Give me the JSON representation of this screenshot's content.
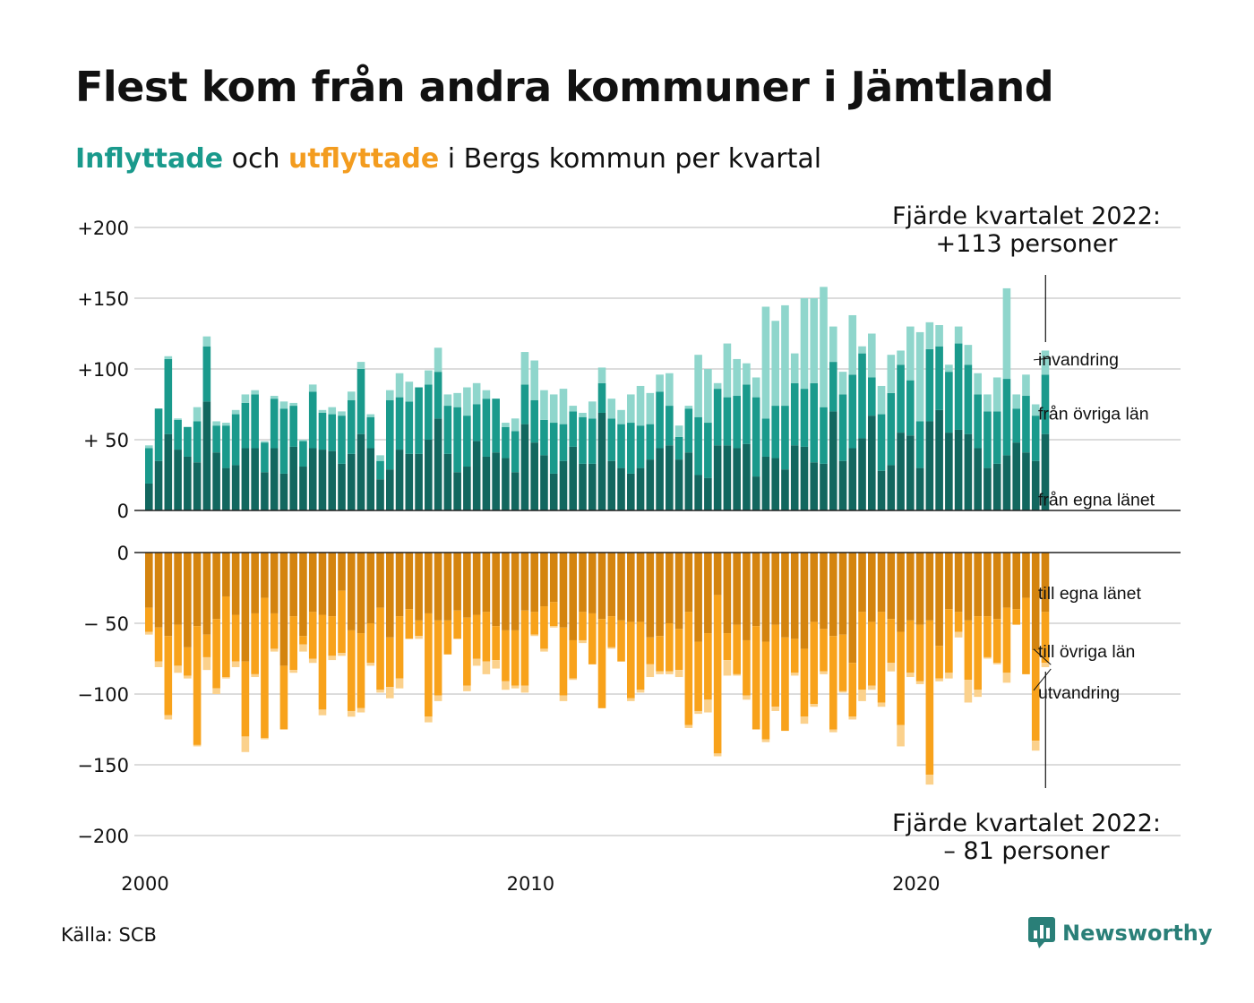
{
  "title": "Flest kom från andra kommuner i Jämtland",
  "subtitle": {
    "in_word": "Inflyttade",
    "and_word": " och ",
    "out_word": "utflyttade",
    "rest": " i Bergs kommun per kvartal"
  },
  "source": "Källa: SCB",
  "logo": {
    "name": "Newsworthy",
    "icon": "newsworthy-bar-chart-icon"
  },
  "colors": {
    "in_own": "#12675f",
    "in_other": "#1a9a8c",
    "in_abroad": "#8fd6cc",
    "out_own": "#d4840f",
    "out_other": "#f8a21b",
    "out_abroad": "#fbd18c"
  },
  "chart_data": {
    "type": "bar",
    "stacked": true,
    "x_unit": "quarter",
    "x_start_year": 2000,
    "x_ticks": [
      "2000",
      "2010",
      "2020"
    ],
    "top_panel": {
      "yticks": [
        {
          "v": 200,
          "label": "+200"
        },
        {
          "v": 150,
          "label": "+150"
        },
        {
          "v": 100,
          "label": "+100"
        },
        {
          "v": 50,
          "label": "+ 50"
        },
        {
          "v": 0,
          "label": "0"
        }
      ],
      "ylim": [
        0,
        200
      ],
      "series_labels": [
        "från egna länet",
        "från övriga län",
        "invandring"
      ],
      "annotation": [
        "Fjärde kvartalet 2022:",
        "+113 personer"
      ],
      "own_county": [
        19,
        35,
        54,
        43,
        38,
        34,
        77,
        41,
        30,
        32,
        44,
        44,
        27,
        44,
        26,
        45,
        31,
        44,
        43,
        42,
        33,
        40,
        54,
        44,
        22,
        29,
        43,
        40,
        40,
        50,
        65,
        40,
        27,
        31,
        49,
        38,
        41,
        37,
        27,
        61,
        48,
        39,
        26,
        35,
        45,
        33,
        33,
        69,
        35,
        30,
        26,
        30,
        36,
        44,
        46,
        36,
        41,
        25,
        23,
        46,
        46,
        44,
        47,
        24,
        38,
        37,
        29,
        46,
        45,
        34,
        33,
        70,
        35,
        44,
        51,
        67,
        28,
        32,
        55,
        53,
        30,
        63,
        71,
        55,
        57,
        54,
        44,
        30,
        33,
        39,
        48,
        41,
        35,
        54
      ],
      "other_counties": [
        25,
        37,
        53,
        21,
        21,
        29,
        39,
        19,
        30,
        36,
        32,
        38,
        21,
        35,
        46,
        29,
        18,
        40,
        26,
        26,
        34,
        38,
        46,
        22,
        13,
        49,
        37,
        37,
        47,
        39,
        33,
        34,
        46,
        36,
        26,
        41,
        38,
        22,
        29,
        28,
        30,
        25,
        36,
        26,
        25,
        33,
        32,
        21,
        30,
        31,
        36,
        30,
        25,
        40,
        28,
        16,
        31,
        41,
        39,
        40,
        34,
        37,
        42,
        56,
        27,
        37,
        45,
        44,
        41,
        56,
        40,
        35,
        47,
        52,
        60,
        27,
        40,
        51,
        48,
        39,
        33,
        51,
        45,
        43,
        61,
        49,
        38,
        40,
        37,
        54,
        24,
        40,
        32,
        42
      ],
      "abroad": [
        2,
        0,
        2,
        1,
        0,
        10,
        7,
        3,
        2,
        3,
        6,
        3,
        1,
        2,
        5,
        2,
        1,
        5,
        2,
        5,
        3,
        6,
        5,
        2,
        4,
        7,
        17,
        14,
        0,
        10,
        17,
        8,
        10,
        20,
        15,
        6,
        0,
        3,
        9,
        23,
        28,
        21,
        20,
        25,
        4,
        3,
        12,
        11,
        14,
        10,
        20,
        28,
        22,
        12,
        23,
        8,
        2,
        44,
        38,
        4,
        38,
        26,
        15,
        14,
        79,
        60,
        71,
        21,
        64,
        60,
        85,
        25,
        16,
        42,
        5,
        31,
        20,
        27,
        10,
        38,
        63,
        19,
        15,
        5,
        12,
        14,
        15,
        12,
        24,
        64,
        10,
        15,
        8,
        17
      ]
    },
    "bottom_panel": {
      "yticks": [
        {
          "v": 0,
          "label": "0"
        },
        {
          "v": -50,
          "label": "− 50"
        },
        {
          "v": -100,
          "label": "−100"
        },
        {
          "v": -150,
          "label": "−150"
        },
        {
          "v": -200,
          "label": "−200"
        }
      ],
      "ylim": [
        -200,
        0
      ],
      "series_labels": [
        "till egna länet",
        "till övriga län",
        "utvandring"
      ],
      "annotation": [
        "Fjärde kvartalet 2022:",
        "– 81 personer"
      ],
      "own_county": [
        39,
        53,
        59,
        51,
        67,
        52,
        58,
        47,
        31,
        44,
        77,
        43,
        32,
        43,
        80,
        45,
        59,
        42,
        44,
        45,
        27,
        55,
        57,
        50,
        39,
        60,
        45,
        40,
        48,
        43,
        48,
        48,
        41,
        46,
        44,
        42,
        52,
        55,
        55,
        41,
        42,
        38,
        35,
        53,
        62,
        42,
        43,
        47,
        45,
        48,
        49,
        49,
        60,
        59,
        50,
        54,
        42,
        63,
        57,
        30,
        57,
        51,
        62,
        52,
        63,
        51,
        60,
        61,
        68,
        49,
        54,
        59,
        58,
        78,
        42,
        49,
        42,
        47,
        56,
        48,
        51,
        48,
        66,
        40,
        42,
        48,
        45,
        45,
        47,
        39,
        40,
        32,
        69,
        42
      ],
      "other_counties": [
        17,
        24,
        56,
        29,
        20,
        84,
        16,
        49,
        57,
        33,
        53,
        43,
        99,
        25,
        45,
        38,
        6,
        33,
        67,
        28,
        44,
        57,
        53,
        28,
        58,
        35,
        44,
        21,
        11,
        73,
        53,
        24,
        20,
        48,
        31,
        35,
        24,
        36,
        39,
        53,
        16,
        30,
        17,
        48,
        27,
        20,
        36,
        63,
        22,
        29,
        54,
        48,
        19,
        25,
        34,
        29,
        80,
        49,
        47,
        112,
        19,
        35,
        39,
        73,
        69,
        58,
        66,
        24,
        48,
        58,
        30,
        66,
        40,
        38,
        55,
        45,
        64,
        31,
        66,
        37,
        40,
        109,
        23,
        45,
        14,
        42,
        52,
        29,
        31,
        46,
        11,
        54,
        64,
        36
      ],
      "abroad": [
        2,
        4,
        3,
        5,
        2,
        1,
        9,
        4,
        1,
        4,
        11,
        2,
        1,
        2,
        0,
        2,
        5,
        3,
        4,
        3,
        2,
        4,
        3,
        2,
        2,
        8,
        7,
        0,
        2,
        4,
        4,
        0,
        0,
        4,
        5,
        9,
        6,
        6,
        2,
        5,
        1,
        2,
        1,
        4,
        1,
        2,
        0,
        0,
        1,
        0,
        2,
        2,
        9,
        2,
        2,
        5,
        2,
        2,
        9,
        2,
        11,
        1,
        3,
        0,
        2,
        3,
        0,
        2,
        5,
        2,
        2,
        2,
        1,
        2,
        8,
        3,
        3,
        6,
        15,
        3,
        2,
        7,
        2,
        4,
        4,
        16,
        5,
        1,
        1,
        7,
        0,
        0,
        7,
        3
      ]
    }
  }
}
